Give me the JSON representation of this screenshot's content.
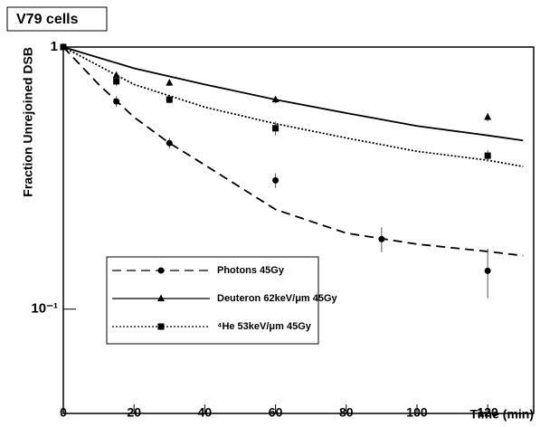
{
  "chart_data": {
    "type": "scatter",
    "title": "V79 cells",
    "xlabel": "Time (min)",
    "ylabel": "Fraction Unrejoined DSB",
    "xlim": [
      0,
      133
    ],
    "xticks": [
      0,
      20,
      40,
      60,
      80,
      100,
      120
    ],
    "ylim": [
      0.04,
      1
    ],
    "yscale": "log",
    "yticks": [
      {
        "value": 0.1,
        "label": "10⁻¹"
      },
      1
    ],
    "series": [
      {
        "name": "Photons  45Gy",
        "marker": "circle",
        "dash": "10,6",
        "color": "#000000",
        "x": [
          0,
          15,
          30,
          60,
          90,
          120
        ],
        "values": [
          1,
          0.62,
          0.43,
          0.31,
          0.185,
          0.14
        ],
        "errors": [
          null,
          0.03,
          0.02,
          0.02,
          0.02,
          0.03
        ],
        "fit_x": [
          0,
          10,
          20,
          30,
          40,
          60,
          80,
          100,
          120,
          130
        ],
        "fit_values": [
          1,
          0.72,
          0.54,
          0.43,
          0.355,
          0.24,
          0.195,
          0.177,
          0.166,
          0.16
        ]
      },
      {
        "name": "Deuteron 62keV/μm  45Gy",
        "marker": "triangle",
        "dash": "",
        "color": "#000000",
        "x": [
          0,
          15,
          30,
          60,
          120
        ],
        "values": [
          1,
          0.78,
          0.73,
          0.63,
          0.54
        ],
        "errors": [
          null,
          0.02,
          0.02,
          0.02,
          0.02
        ],
        "fit_x": [
          0,
          20,
          40,
          60,
          80,
          100,
          120,
          130
        ],
        "fit_values": [
          1,
          0.83,
          0.72,
          0.63,
          0.56,
          0.5,
          0.46,
          0.44
        ]
      },
      {
        "name": "⁴He 53keV/μm  45Gy",
        "marker": "square",
        "dash": "2,2",
        "color": "#000000",
        "x": [
          0,
          15,
          30,
          60,
          120
        ],
        "values": [
          1,
          0.74,
          0.63,
          0.49,
          0.385
        ],
        "errors": [
          null,
          0.03,
          0.02,
          0.03,
          0.02
        ],
        "fit_x": [
          0,
          20,
          40,
          60,
          80,
          100,
          120,
          130
        ],
        "fit_values": [
          1,
          0.72,
          0.59,
          0.51,
          0.45,
          0.4,
          0.37,
          0.35
        ]
      }
    ]
  }
}
